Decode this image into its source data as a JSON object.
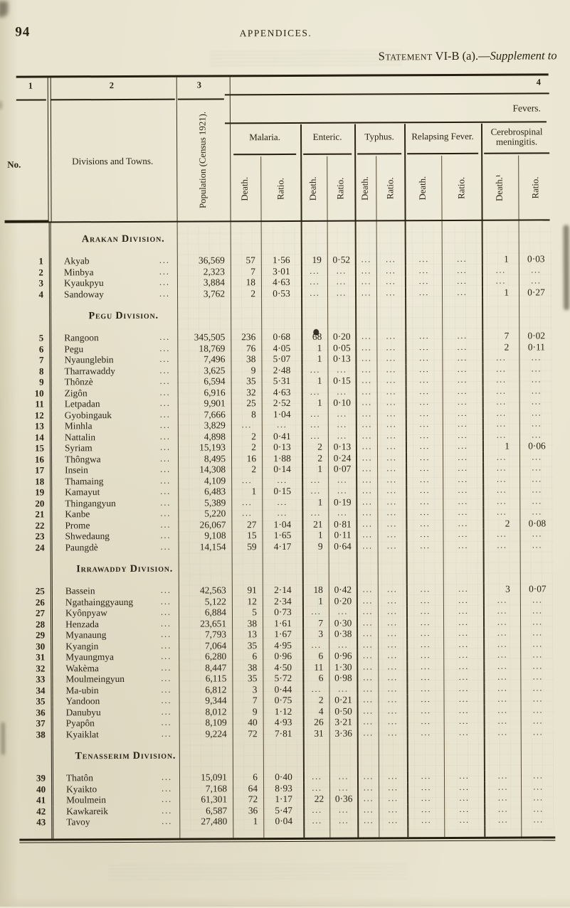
{
  "page": {
    "page_number": "94",
    "running_header": "APPENDICES.",
    "statement": {
      "small_caps": "Statement",
      "rest": " VI-B (a).—",
      "italic": "Supplement to"
    }
  },
  "table": {
    "column_numbers": [
      "1",
      "2",
      "3",
      "4"
    ],
    "headers": {
      "no": "No.",
      "towns": "Divisions and Towns.",
      "population": "Population (Census 1921).",
      "fevers": "Fevers.",
      "diseases": [
        "Malaria.",
        "Enteric.",
        "Typhus.",
        "Relapsing Fever.",
        "Cerebrospinal meningitis."
      ],
      "sub_labels": [
        "Death.",
        "Ratio.",
        "Death.",
        "Ratio.",
        "Death.",
        "Ratio.",
        "Death.",
        "Ratio.",
        "Death.¹",
        "Ratio."
      ]
    },
    "dots_leader": "...",
    "empty_cell": "...",
    "sections": [
      {
        "division": "Arakan Division.",
        "rows": [
          {
            "no": "1",
            "town": "Akyab",
            "pop": "36,569",
            "cells": [
              "57",
              "1·56",
              "19",
              "0·52",
              "...",
              "...",
              "...",
              "...",
              "1",
              "0·03"
            ]
          },
          {
            "no": "2",
            "town": "Minbya",
            "pop": "2,323",
            "cells": [
              "7",
              "3·01",
              "...",
              "...",
              "...",
              "...",
              "...",
              "...",
              "...",
              "..."
            ]
          },
          {
            "no": "3",
            "town": "Kyaukpyu",
            "pop": "3,884",
            "cells": [
              "18",
              "4·63",
              "...",
              "...",
              "...",
              "...",
              "...",
              "...",
              "...",
              "..."
            ]
          },
          {
            "no": "4",
            "town": "Sandoway",
            "pop": "3,762",
            "cells": [
              "2",
              "0·53",
              "...",
              "...",
              "...",
              "...",
              "...",
              "...",
              "1",
              "0·27"
            ]
          }
        ]
      },
      {
        "division": "Pegu Division.",
        "rows": [
          {
            "no": "5",
            "town": "Rangoon",
            "pop": "345,505",
            "cells": [
              "236",
              "0·68",
              "68",
              "0·20",
              "...",
              "...",
              "...",
              "...",
              "7",
              "0·02"
            ]
          },
          {
            "no": "6",
            "town": "Pegu",
            "pop": "18,769",
            "cells": [
              "76",
              "4·05",
              "1",
              "0·05",
              "...",
              "...",
              "...",
              "...",
              "2",
              "0·11"
            ]
          },
          {
            "no": "7",
            "town": "Nyaunglebin",
            "pop": "7,496",
            "cells": [
              "38",
              "5·07",
              "1",
              "0·13",
              "...",
              "...",
              "...",
              "...",
              "...",
              "..."
            ]
          },
          {
            "no": "8",
            "town": "Tharrawaddy",
            "pop": "3,625",
            "cells": [
              "9",
              "2·48",
              "...",
              "...",
              "...",
              "...",
              "...",
              "...",
              "...",
              "..."
            ]
          },
          {
            "no": "9",
            "town": "Thônzè",
            "pop": "6,594",
            "cells": [
              "35",
              "5·31",
              "1",
              "0·15",
              "...",
              "...",
              "...",
              "...",
              "...",
              "..."
            ]
          },
          {
            "no": "10",
            "town": "Zigôn",
            "pop": "6,916",
            "cells": [
              "32",
              "4·63",
              "...",
              "...",
              "...",
              "...",
              "...",
              "...",
              "...",
              "..."
            ]
          },
          {
            "no": "11",
            "town": "Letpadan",
            "pop": "9,901",
            "cells": [
              "25",
              "2·52",
              "1",
              "0·10",
              "...",
              "...",
              "...",
              "...",
              "...",
              "..."
            ]
          },
          {
            "no": "12",
            "town": "Gyobingauk",
            "pop": "7,666",
            "cells": [
              "8",
              "1·04",
              "...",
              "...",
              "...",
              "...",
              "...",
              "...",
              "...",
              "..."
            ]
          },
          {
            "no": "13",
            "town": "Minhla",
            "pop": "3,829",
            "cells": [
              "...",
              "...",
              "...",
              "...",
              "...",
              "...",
              "...",
              "...",
              "...",
              "..."
            ]
          },
          {
            "no": "14",
            "town": "Nattalin",
            "pop": "4,898",
            "cells": [
              "2",
              "0·41",
              "...",
              "...",
              "...",
              "...",
              "...",
              "...",
              "...",
              "..."
            ]
          },
          {
            "no": "15",
            "town": "Syriam",
            "pop": "15,193",
            "cells": [
              "2",
              "0·13",
              "2",
              "0·13",
              "...",
              "...",
              "...",
              "...",
              "1",
              "0·06"
            ]
          },
          {
            "no": "16",
            "town": "Thôngwa",
            "pop": "8,495",
            "cells": [
              "16",
              "1·88",
              "2",
              "0·24",
              "...",
              "...",
              "...",
              "...",
              "...",
              "..."
            ]
          },
          {
            "no": "17",
            "town": "Insein",
            "pop": "14,308",
            "cells": [
              "2",
              "0·14",
              "1",
              "0·07",
              "...",
              "...",
              "...",
              "...",
              "...",
              "..."
            ]
          },
          {
            "no": "18",
            "town": "Thamaing",
            "pop": "4,109",
            "cells": [
              "...",
              "...",
              "...",
              "...",
              "...",
              "...",
              "...",
              "...",
              "...",
              "..."
            ]
          },
          {
            "no": "19",
            "town": "Kamayut",
            "pop": "6,483",
            "cells": [
              "1",
              "0·15",
              "...",
              "...",
              "...",
              "...",
              "...",
              "...",
              "...",
              "..."
            ]
          },
          {
            "no": "20",
            "town": "Thingangyun",
            "pop": "5,389",
            "cells": [
              "...",
              "...",
              "1",
              "0·19",
              "...",
              "...",
              "...",
              "...",
              "...",
              "..."
            ]
          },
          {
            "no": "21",
            "town": "Kanbe",
            "pop": "5,220",
            "cells": [
              "...",
              "...",
              "...",
              "...",
              "...",
              "...",
              "...",
              "...",
              "...",
              "..."
            ]
          },
          {
            "no": "22",
            "town": "Prome",
            "pop": "26,067",
            "cells": [
              "27",
              "1·04",
              "21",
              "0·81",
              "...",
              "...",
              "...",
              "...",
              "2",
              "0·08"
            ]
          },
          {
            "no": "23",
            "town": "Shwedaung",
            "pop": "9,108",
            "cells": [
              "15",
              "1·65",
              "1",
              "0·11",
              "...",
              "...",
              "...",
              "...",
              "...",
              "..."
            ]
          },
          {
            "no": "24",
            "town": "Paungdè",
            "pop": "14,154",
            "cells": [
              "59",
              "4·17",
              "9",
              "0·64",
              "...",
              "...",
              "...",
              "...",
              "...",
              "..."
            ]
          }
        ]
      },
      {
        "division": "Irrawaddy Division.",
        "rows": [
          {
            "no": "25",
            "town": "Bassein",
            "pop": "42,563",
            "cells": [
              "91",
              "2·14",
              "18",
              "0·42",
              "...",
              "...",
              "...",
              "...",
              "3",
              "0·07"
            ]
          },
          {
            "no": "26",
            "town": "Ngathainggyaung",
            "pop": "5,122",
            "cells": [
              "12",
              "2·34",
              "1",
              "0·20",
              "...",
              "...",
              "...",
              "...",
              "...",
              "..."
            ]
          },
          {
            "no": "27",
            "town": "Kyônpyaw",
            "pop": "6,884",
            "cells": [
              "5",
              "0·73",
              "...",
              "...",
              "...",
              "...",
              "...",
              "...",
              "...",
              "..."
            ]
          },
          {
            "no": "28",
            "town": "Henzada",
            "pop": "23,651",
            "cells": [
              "38",
              "1·61",
              "7",
              "0·30",
              "...",
              "...",
              "...",
              "...",
              "...",
              "..."
            ]
          },
          {
            "no": "29",
            "town": "Myanaung",
            "pop": "7,793",
            "cells": [
              "13",
              "1·67",
              "3",
              "0·38",
              "...",
              "...",
              "...",
              "...",
              "...",
              "..."
            ]
          },
          {
            "no": "30",
            "town": "Kyangin",
            "pop": "7,064",
            "cells": [
              "35",
              "4·95",
              "...",
              "...",
              "...",
              "...",
              "...",
              "...",
              "...",
              "..."
            ]
          },
          {
            "no": "31",
            "town": "Myaungmya",
            "pop": "6,280",
            "cells": [
              "6",
              "0·96",
              "6",
              "0·96",
              "...",
              "...",
              "...",
              "...",
              "...",
              "..."
            ]
          },
          {
            "no": "32",
            "town": "Wakèma",
            "pop": "8,447",
            "cells": [
              "38",
              "4·50",
              "11",
              "1·30",
              "...",
              "...",
              "...",
              "...",
              "...",
              "..."
            ]
          },
          {
            "no": "33",
            "town": "Moulmeingyun",
            "pop": "6,115",
            "cells": [
              "35",
              "5·72",
              "6",
              "0·98",
              "...",
              "...",
              "...",
              "...",
              "...",
              "..."
            ]
          },
          {
            "no": "34",
            "town": "Ma-ubin",
            "pop": "6,812",
            "cells": [
              "3",
              "0·44",
              "...",
              "...",
              "...",
              "...",
              "...",
              "...",
              "...",
              "..."
            ]
          },
          {
            "no": "35",
            "town": "Yandoon",
            "pop": "9,344",
            "cells": [
              "7",
              "0·75",
              "2",
              "0·21",
              "...",
              "...",
              "...",
              "...",
              "...",
              "..."
            ]
          },
          {
            "no": "36",
            "town": "Danubyu",
            "pop": "8,012",
            "cells": [
              "9",
              "1·12",
              "4",
              "0·50",
              "...",
              "...",
              "...",
              "...",
              "...",
              "..."
            ]
          },
          {
            "no": "37",
            "town": "Pyapôn",
            "pop": "8,109",
            "cells": [
              "40",
              "4·93",
              "26",
              "3·21",
              "...",
              "...",
              "...",
              "...",
              "...",
              "..."
            ]
          },
          {
            "no": "38",
            "town": "Kyaiklat",
            "pop": "9,224",
            "cells": [
              "72",
              "7·81",
              "31",
              "3·36",
              "...",
              "...",
              "...",
              "...",
              "...",
              "..."
            ]
          }
        ]
      },
      {
        "division": "Tenasserim Division.",
        "rows": [
          {
            "no": "39",
            "town": "Thatôn",
            "pop": "15,091",
            "cells": [
              "6",
              "0·40",
              "...",
              "...",
              "...",
              "...",
              "...",
              "...",
              "...",
              "..."
            ]
          },
          {
            "no": "40",
            "town": "Kyaikto",
            "pop": "7,168",
            "cells": [
              "64",
              "8·93",
              "...",
              "...",
              "...",
              "...",
              "...",
              "...",
              "...",
              "..."
            ]
          },
          {
            "no": "41",
            "town": "Moulmein",
            "pop": "61,301",
            "cells": [
              "72",
              "1·17",
              "22",
              "0·36",
              "...",
              "...",
              "...",
              "...",
              "...",
              "..."
            ]
          },
          {
            "no": "42",
            "town": "Kawkareik",
            "pop": "6,587",
            "cells": [
              "36",
              "5·47",
              "...",
              "...",
              "...",
              "...",
              "...",
              "...",
              "...",
              "..."
            ]
          },
          {
            "no": "43",
            "town": "Tavoy",
            "pop": "27,480",
            "cells": [
              "1",
              "0·04",
              "...",
              "...",
              "...",
              "...",
              "...",
              "...",
              "...",
              "..."
            ]
          }
        ]
      }
    ]
  }
}
